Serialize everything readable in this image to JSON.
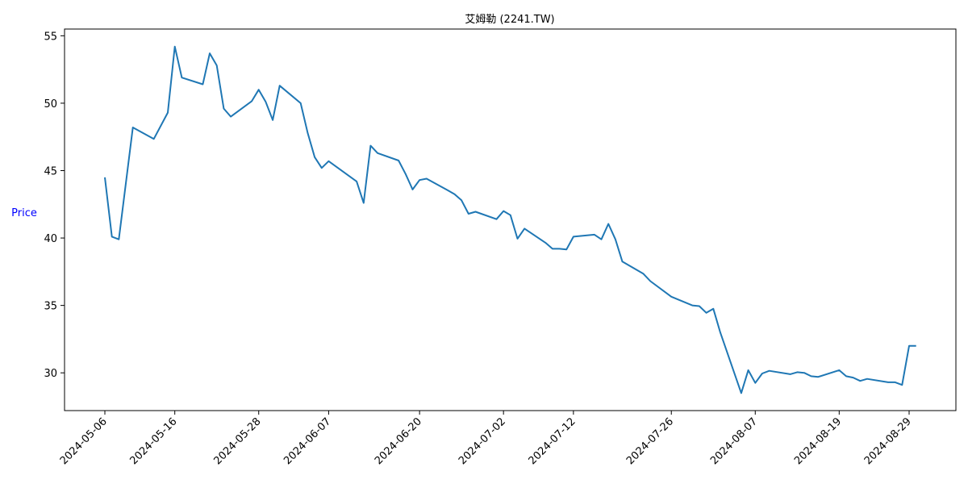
{
  "chart_data": {
    "type": "line",
    "title": "艾姆勒 (2241.TW)",
    "xlabel": "",
    "ylabel": "Price",
    "ylim": [
      27.2,
      55.5
    ],
    "y_ticks": [
      30,
      35,
      40,
      45,
      50,
      55
    ],
    "x_ticks": [
      "2024-05-06",
      "2024-05-16",
      "2024-05-28",
      "2024-06-07",
      "2024-06-20",
      "2024-07-02",
      "2024-07-12",
      "2024-07-26",
      "2024-08-07",
      "2024-08-19",
      "2024-08-29"
    ],
    "grid": false,
    "line_color": "#1f77b4",
    "series": [
      {
        "x": [
          "2024-05-06",
          "2024-05-07",
          "2024-05-08",
          "2024-05-10",
          "2024-05-13",
          "2024-05-15",
          "2024-05-16",
          "2024-05-17",
          "2024-05-20",
          "2024-05-21",
          "2024-05-22",
          "2024-05-23",
          "2024-05-24",
          "2024-05-27",
          "2024-05-28",
          "2024-05-29",
          "2024-05-30",
          "2024-05-31",
          "2024-06-03",
          "2024-06-04",
          "2024-06-05",
          "2024-06-06",
          "2024-06-07",
          "2024-06-11",
          "2024-06-12",
          "2024-06-13",
          "2024-06-14",
          "2024-06-17",
          "2024-06-18",
          "2024-06-19",
          "2024-06-20",
          "2024-06-21",
          "2024-06-24",
          "2024-06-25",
          "2024-06-26",
          "2024-06-27",
          "2024-06-28",
          "2024-07-01",
          "2024-07-02",
          "2024-07-03",
          "2024-07-04",
          "2024-07-05",
          "2024-07-08",
          "2024-07-09",
          "2024-07-10",
          "2024-07-11",
          "2024-07-12",
          "2024-07-15",
          "2024-07-16",
          "2024-07-17",
          "2024-07-18",
          "2024-07-19",
          "2024-07-22",
          "2024-07-23",
          "2024-07-26",
          "2024-07-29",
          "2024-07-30",
          "2024-07-31",
          "2024-08-01",
          "2024-08-02",
          "2024-08-05",
          "2024-08-06",
          "2024-08-07",
          "2024-08-08",
          "2024-08-09",
          "2024-08-12",
          "2024-08-13",
          "2024-08-14",
          "2024-08-15",
          "2024-08-16",
          "2024-08-19",
          "2024-08-20",
          "2024-08-21",
          "2024-08-22",
          "2024-08-23",
          "2024-08-26",
          "2024-08-27",
          "2024-08-28",
          "2024-08-29",
          "2024-08-30"
        ],
        "values": [
          44.5,
          40.1,
          39.9,
          48.2,
          47.35,
          49.3,
          54.2,
          51.9,
          51.4,
          53.7,
          52.8,
          49.6,
          49.0,
          50.15,
          51.0,
          50.1,
          48.75,
          51.3,
          50.0,
          47.8,
          46.0,
          45.2,
          45.7,
          44.2,
          42.6,
          46.85,
          46.3,
          45.75,
          44.75,
          43.6,
          44.3,
          44.4,
          43.55,
          43.25,
          42.8,
          41.8,
          41.95,
          41.4,
          42.0,
          41.7,
          39.95,
          40.7,
          39.65,
          39.2,
          39.2,
          39.15,
          40.1,
          40.25,
          39.9,
          41.05,
          39.9,
          38.25,
          37.35,
          36.8,
          35.65,
          35.0,
          34.95,
          34.45,
          34.75,
          33.0,
          28.5,
          30.2,
          29.25,
          29.95,
          30.15,
          29.9,
          30.05,
          30.0,
          29.75,
          29.7,
          30.2,
          29.75,
          29.65,
          29.4,
          29.55,
          29.3,
          29.3,
          29.1,
          32.0,
          32.0
        ]
      }
    ]
  }
}
